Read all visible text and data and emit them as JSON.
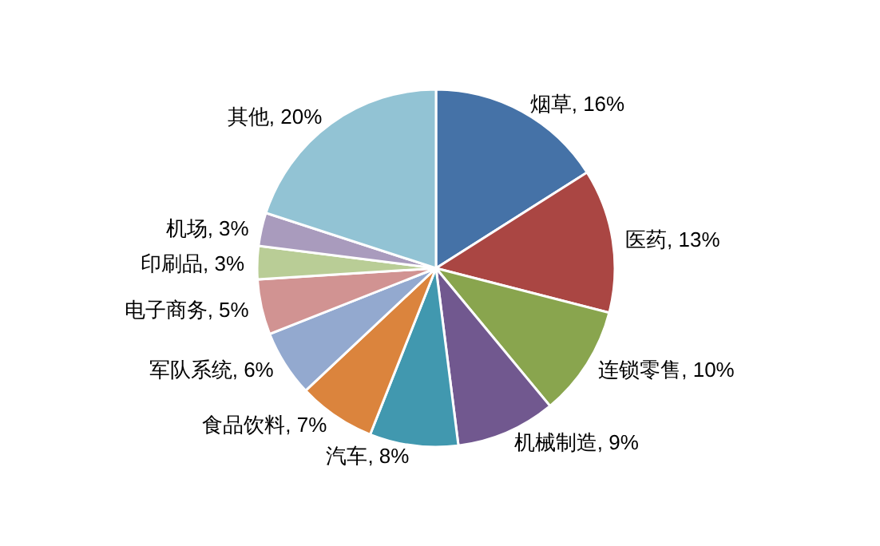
{
  "chart_data": {
    "type": "pie",
    "categories": [
      "烟草",
      "医药",
      "连锁零售",
      "机械制造",
      "汽车",
      "食品饮料",
      "军队系统",
      "电子商务",
      "印刷品",
      "机场",
      "其他"
    ],
    "values": [
      16,
      13,
      10,
      9,
      8,
      7,
      6,
      5,
      3,
      3,
      20
    ],
    "colors": [
      "#4572a7",
      "#aa4643",
      "#89a54e",
      "#71588f",
      "#4198af",
      "#db843d",
      "#93a9cf",
      "#d19392",
      "#b9cd96",
      "#a99bbd",
      "#92c3d4"
    ],
    "value_labels": [
      ", 16%",
      ", 13%",
      ", 10%",
      ", 9%",
      ", 8%",
      ", 7%",
      ", 6%",
      ", 5%",
      ", 3%",
      ", 3%",
      ", 20%"
    ]
  }
}
